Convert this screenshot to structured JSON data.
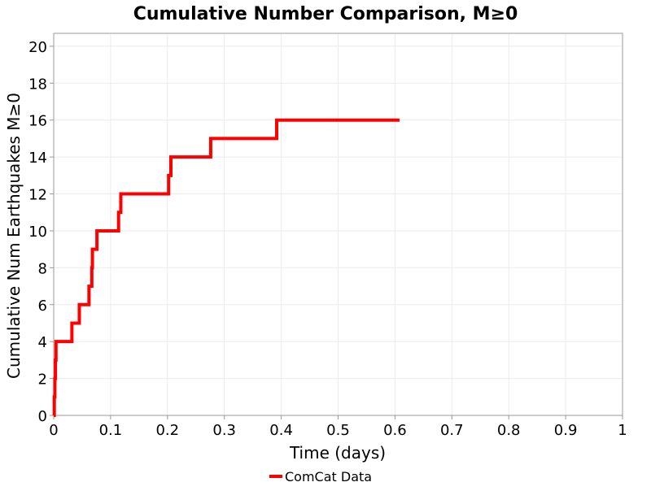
{
  "chart_data": {
    "type": "line",
    "title": "Cumulative Number Comparison, M≥0",
    "xlabel": "Time (days)",
    "ylabel": "Cumulative Num Earthquakes M≥0",
    "xlim": [
      0,
      1
    ],
    "ylim": [
      0,
      20.7
    ],
    "xticks": [
      "0",
      "0.1",
      "0.2",
      "0.3",
      "0.4",
      "0.5",
      "0.6",
      "0.7",
      "0.8",
      "0.9",
      "1"
    ],
    "yticks": [
      "0",
      "2",
      "4",
      "6",
      "8",
      "10",
      "12",
      "14",
      "16",
      "18",
      "20"
    ],
    "grid": true,
    "legend_position": "bottom",
    "series": [
      {
        "name": "ComCat Data",
        "color": "#ff0000",
        "step": true,
        "x": [
          0,
          0.001,
          0.002,
          0.003,
          0.004,
          0.032,
          0.045,
          0.062,
          0.067,
          0.068,
          0.076,
          0.114,
          0.118,
          0.202,
          0.206,
          0.276,
          0.392,
          0.608
        ],
        "y": [
          0,
          1,
          2,
          3,
          4,
          5,
          6,
          7,
          8,
          9,
          10,
          11,
          12,
          13,
          14,
          15,
          16,
          16
        ]
      }
    ]
  }
}
